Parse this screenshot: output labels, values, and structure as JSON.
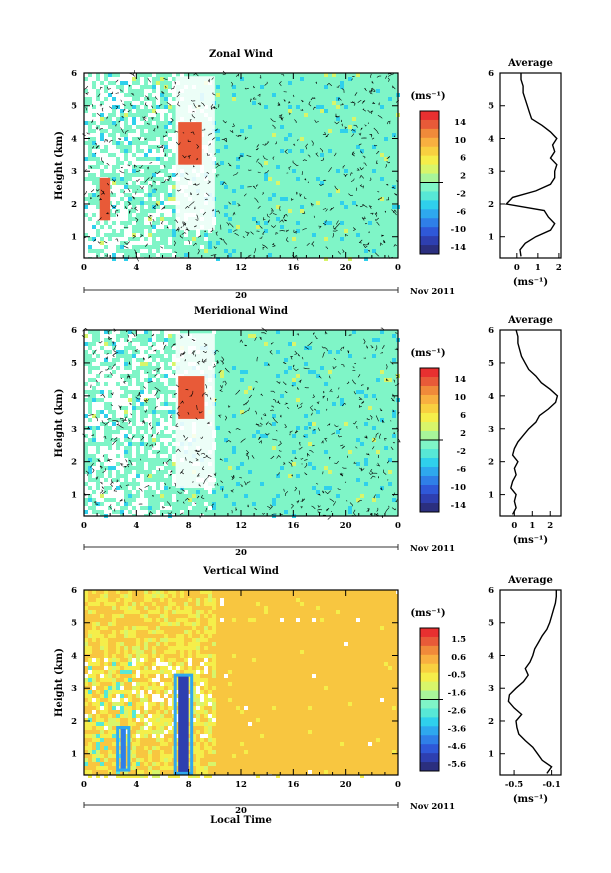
{
  "chart_data": [
    {
      "type": "heatmap",
      "title": "Zonal Wind",
      "ylabel": "Height (km)",
      "xticks": [
        "0",
        "4",
        "8",
        "12",
        "16",
        "20",
        "0"
      ],
      "date_bar": "20",
      "date_label": "Nov 2011",
      "xlim": [
        0,
        24
      ],
      "ylim": [
        0.35,
        6
      ],
      "yticks": [
        "1",
        "2",
        "3",
        "4",
        "5",
        "6"
      ],
      "colorbar": {
        "unit": "(ms⁻¹)",
        "ticks": [
          "14",
          "10",
          "6",
          "2",
          "-2",
          "-6",
          "-10",
          "-14"
        ],
        "range": [
          -16,
          16
        ]
      },
      "background_level": "~0 ms⁻¹ (pale green)",
      "features": [
        {
          "label": "strong westerly core",
          "x_range": [
            7.2,
            9.0
          ],
          "y_range": [
            3.2,
            4.5
          ],
          "value": 14
        },
        {
          "label": "low-level positive burst",
          "x_range": [
            1.2,
            2.0
          ],
          "y_range": [
            1.5,
            2.8
          ],
          "value": 14
        }
      ],
      "average_profile": {
        "title": "Average",
        "xlabel": "(ms⁻¹)",
        "xticks": [
          "0",
          "1",
          "2"
        ],
        "xlim": [
          -0.8,
          2.1
        ],
        "height": [
          0.4,
          0.6,
          0.8,
          1.0,
          1.2,
          1.4,
          1.6,
          1.8,
          2.0,
          2.2,
          2.4,
          2.6,
          2.8,
          3.0,
          3.2,
          3.4,
          3.6,
          3.8,
          4.0,
          4.2,
          4.4,
          4.6,
          4.8,
          5.0,
          5.2,
          5.4,
          5.6,
          5.8,
          6.0
        ],
        "value": [
          0.2,
          0.15,
          0.4,
          0.9,
          1.6,
          1.8,
          1.5,
          1.3,
          -0.5,
          -0.2,
          0.9,
          1.6,
          1.8,
          1.8,
          1.9,
          1.6,
          1.8,
          1.7,
          1.9,
          1.6,
          1.2,
          0.7,
          0.6,
          0.5,
          0.4,
          0.3,
          0.3,
          0.2,
          0.2
        ]
      }
    },
    {
      "type": "heatmap",
      "title": "Meridional Wind",
      "ylabel": "Height (km)",
      "xticks": [
        "0",
        "4",
        "8",
        "12",
        "16",
        "20",
        "0"
      ],
      "date_bar": "20",
      "date_label": "Nov 2011",
      "xlim": [
        0,
        24
      ],
      "ylim": [
        0.35,
        6
      ],
      "yticks": [
        "1",
        "2",
        "3",
        "4",
        "5",
        "6"
      ],
      "colorbar": {
        "unit": "(ms⁻¹)",
        "ticks": [
          "14",
          "10",
          "6",
          "2",
          "-2",
          "-6",
          "-10",
          "-14"
        ],
        "range": [
          -16,
          16
        ]
      },
      "background_level": "~0 ms⁻¹ (pale green)",
      "features": [
        {
          "label": "strong southerly core",
          "x_range": [
            7.2,
            9.2
          ],
          "y_range": [
            3.3,
            4.6
          ],
          "value": 14
        }
      ],
      "average_profile": {
        "title": "Average",
        "xlabel": "(ms⁻¹)",
        "xticks": [
          "0",
          "1",
          "2"
        ],
        "xlim": [
          -0.8,
          2.6
        ],
        "height": [
          0.4,
          0.6,
          0.8,
          1.0,
          1.2,
          1.4,
          1.6,
          1.8,
          2.0,
          2.2,
          2.4,
          2.6,
          2.8,
          3.0,
          3.2,
          3.4,
          3.6,
          3.8,
          4.0,
          4.2,
          4.4,
          4.6,
          4.8,
          5.0,
          5.2,
          5.4,
          5.6,
          5.8,
          6.0
        ],
        "value": [
          -0.1,
          0.1,
          0.0,
          0.1,
          -0.2,
          -0.1,
          0.1,
          0.0,
          0.2,
          -0.1,
          0.0,
          0.2,
          0.5,
          0.8,
          1.2,
          1.4,
          1.9,
          2.3,
          2.4,
          2.0,
          1.5,
          1.2,
          0.8,
          0.6,
          0.4,
          0.3,
          0.2,
          0.2,
          0.1
        ]
      }
    },
    {
      "type": "heatmap",
      "title": "Vertical Wind",
      "ylabel": "Height (km)",
      "xlabel": "Local Time",
      "xticks": [
        "0",
        "4",
        "8",
        "12",
        "16",
        "20",
        "0"
      ],
      "date_bar": "20",
      "date_label": "Nov 2011",
      "xlim": [
        0,
        24
      ],
      "ylim": [
        0.35,
        6
      ],
      "yticks": [
        "1",
        "2",
        "3",
        "4",
        "5",
        "6"
      ],
      "colorbar": {
        "unit": "(ms⁻¹)",
        "ticks": [
          "1.5",
          "0.6",
          "-0.5",
          "-1.6",
          "-2.6",
          "-3.6",
          "-4.6",
          "-5.6"
        ],
        "range": [
          -6,
          2
        ]
      },
      "background_level": "~0.3 ms⁻¹ (orange)",
      "features": [
        {
          "label": "strong downdraft",
          "x_range": [
            7.2,
            8.0
          ],
          "y_range": [
            0.4,
            3.4
          ],
          "value": -5.6
        },
        {
          "label": "downdraft",
          "x_range": [
            2.8,
            3.2
          ],
          "y_range": [
            0.5,
            1.8
          ],
          "value": -4.6
        }
      ],
      "average_profile": {
        "title": "Average",
        "xlabel": "(ms⁻¹)",
        "xticks": [
          "-0.5",
          "-0.1"
        ],
        "xlim": [
          -0.65,
          0.0
        ],
        "height": [
          0.4,
          0.6,
          0.8,
          1.0,
          1.2,
          1.4,
          1.6,
          1.8,
          2.0,
          2.2,
          2.4,
          2.6,
          2.8,
          3.0,
          3.2,
          3.4,
          3.6,
          3.8,
          4.0,
          4.2,
          4.4,
          4.6,
          4.8,
          5.0,
          5.2,
          5.4,
          5.6,
          5.8,
          6.0
        ],
        "value": [
          -0.15,
          -0.1,
          -0.2,
          -0.25,
          -0.3,
          -0.38,
          -0.45,
          -0.47,
          -0.48,
          -0.42,
          -0.5,
          -0.56,
          -0.55,
          -0.48,
          -0.4,
          -0.35,
          -0.38,
          -0.33,
          -0.3,
          -0.28,
          -0.24,
          -0.2,
          -0.15,
          -0.12,
          -0.1,
          -0.08,
          -0.06,
          -0.05,
          -0.05
        ]
      }
    }
  ]
}
